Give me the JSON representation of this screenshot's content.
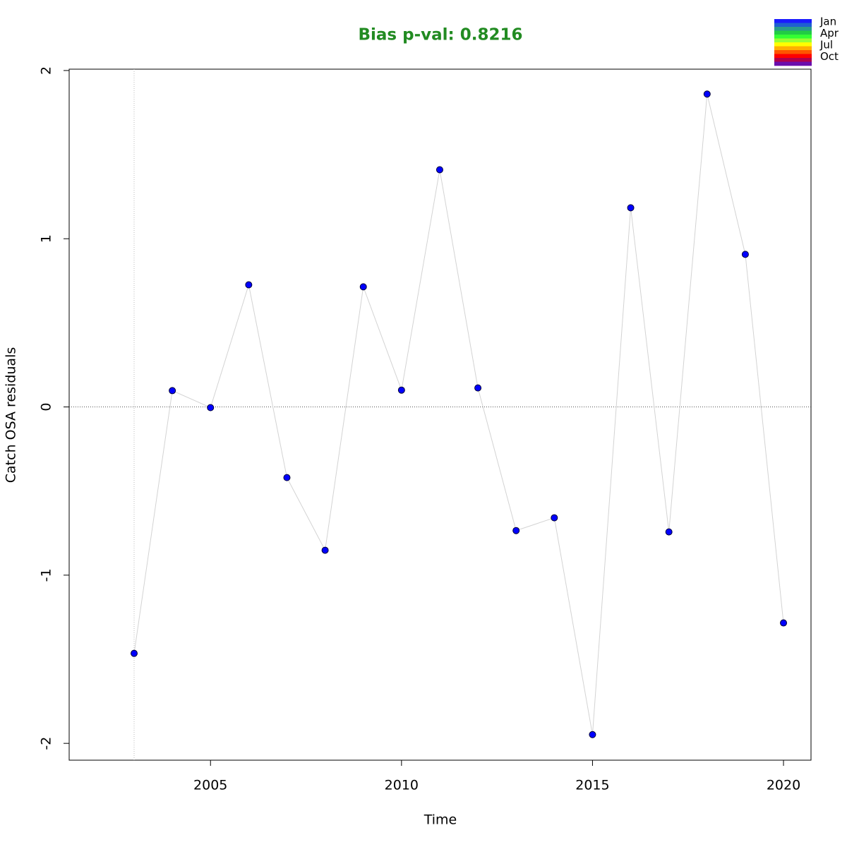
{
  "chart_data": {
    "type": "line",
    "title": "Bias p-val: 0.8216",
    "title_color": "#228b22",
    "x_label": "Time",
    "y_label": "Catch OSA residuals",
    "x": [
      2003,
      2004,
      2005,
      2006,
      2007,
      2008,
      2009,
      2010,
      2011,
      2012,
      2013,
      2014,
      2015,
      2016,
      2017,
      2018,
      2019,
      2020
    ],
    "values": [
      -1.465,
      0.097,
      -0.004,
      0.726,
      -0.42,
      -0.852,
      0.714,
      0.1,
      1.41,
      0.113,
      -0.735,
      -0.659,
      -1.948,
      1.184,
      -0.743,
      1.86,
      0.907,
      -1.284
    ],
    "color": "#0000ff",
    "line_color": "#d3d3d3",
    "xlim": [
      2001.3,
      2020.72
    ],
    "ylim": [
      -2.1,
      2.008
    ],
    "xticks": [
      2005,
      2010,
      2015,
      2020
    ],
    "yticks": [
      -2,
      -1,
      0,
      1,
      2
    ],
    "hline": 0,
    "vline": 2003,
    "legend": {
      "position": "top-right",
      "colors": [
        "#1a1aff",
        "#1f5fd0",
        "#2a9a8a",
        "#22cc44",
        "#33ff33",
        "#99ff33",
        "#ffff00",
        "#ffb000",
        "#ff5500",
        "#ff0000",
        "#b0004d",
        "#6a0dad"
      ],
      "labels": [
        "Jan",
        "Apr",
        "Jul",
        "Oct"
      ]
    }
  }
}
